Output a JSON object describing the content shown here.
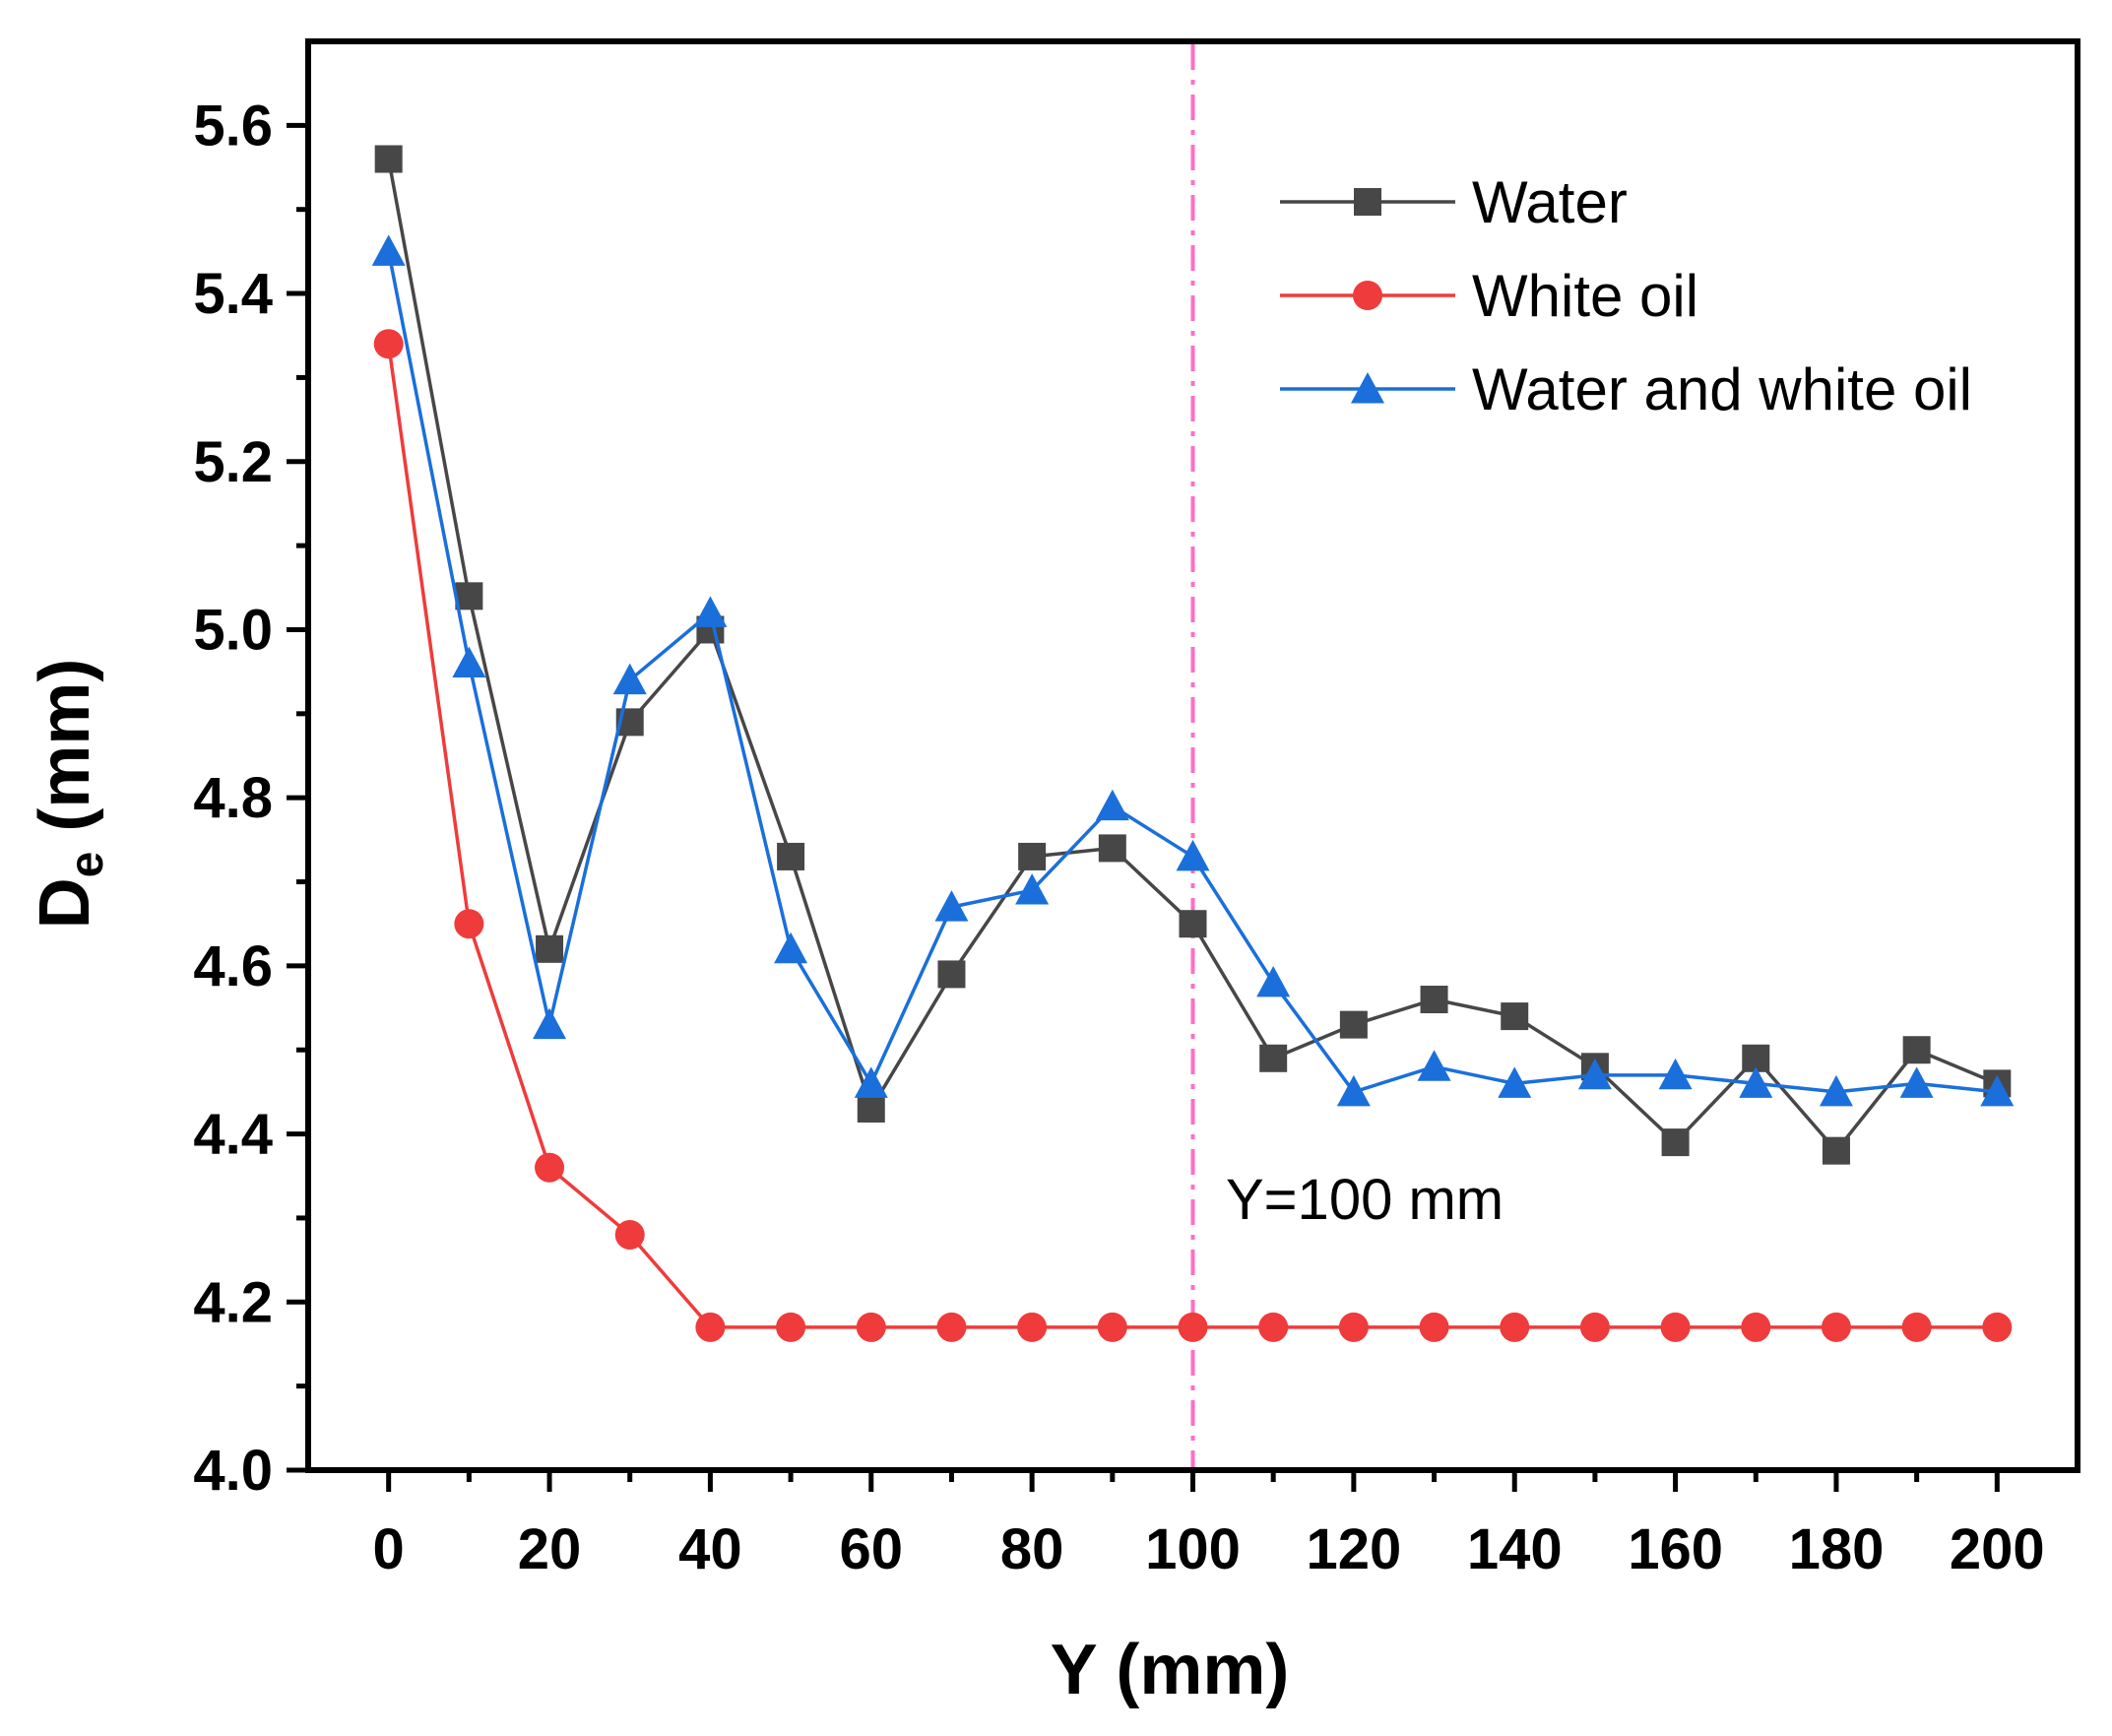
{
  "chart_data": {
    "type": "line",
    "title": "",
    "xlabel": "Y (mm)",
    "ylabel_main": "D",
    "ylabel_sub": "e",
    "ylabel_unit": " (mm)",
    "xlim": [
      -10,
      210
    ],
    "ylim": [
      4.0,
      5.7
    ],
    "xticks": [
      0,
      20,
      40,
      60,
      80,
      100,
      120,
      140,
      160,
      180,
      200
    ],
    "xtick_labels": [
      "0",
      "20",
      "40",
      "60",
      "80",
      "100",
      "120",
      "140",
      "160",
      "180",
      "200"
    ],
    "yticks": [
      4.0,
      4.2,
      4.4,
      4.6,
      4.8,
      5.0,
      5.2,
      5.4,
      5.6
    ],
    "ytick_labels": [
      "4.0",
      "4.2",
      "4.4",
      "4.6",
      "4.8",
      "5.0",
      "5.2",
      "5.4",
      "5.6"
    ],
    "x": [
      0,
      10,
      20,
      30,
      40,
      50,
      60,
      70,
      80,
      90,
      100,
      110,
      120,
      130,
      140,
      150,
      160,
      170,
      180,
      190,
      200
    ],
    "legend_position": "top-right",
    "grid": false,
    "series": [
      {
        "name": "Water",
        "color": "#474747",
        "marker": "square",
        "values": [
          5.56,
          5.04,
          4.62,
          4.89,
          5.0,
          4.73,
          4.43,
          4.59,
          4.73,
          4.74,
          4.65,
          4.49,
          4.53,
          4.56,
          4.54,
          4.48,
          4.39,
          4.49,
          4.38,
          4.5,
          4.46
        ]
      },
      {
        "name": "White oil",
        "color": "#ef3b3b",
        "marker": "circle",
        "values": [
          5.34,
          4.65,
          4.36,
          4.28,
          4.17,
          4.17,
          4.17,
          4.17,
          4.17,
          4.17,
          4.17,
          4.17,
          4.17,
          4.17,
          4.17,
          4.17,
          4.17,
          4.17,
          4.17,
          4.17,
          4.17
        ]
      },
      {
        "name": "Water and white oil",
        "color": "#1a6fdb",
        "marker": "triangle",
        "values": [
          5.45,
          4.96,
          4.53,
          4.94,
          5.02,
          4.62,
          4.46,
          4.67,
          4.69,
          4.79,
          4.73,
          4.58,
          4.45,
          4.48,
          4.46,
          4.47,
          4.47,
          4.46,
          4.45,
          4.46,
          4.45
        ]
      }
    ],
    "reference_line": {
      "x": 100,
      "color": "#ff6ec7",
      "label": "Y=100 mm"
    }
  }
}
